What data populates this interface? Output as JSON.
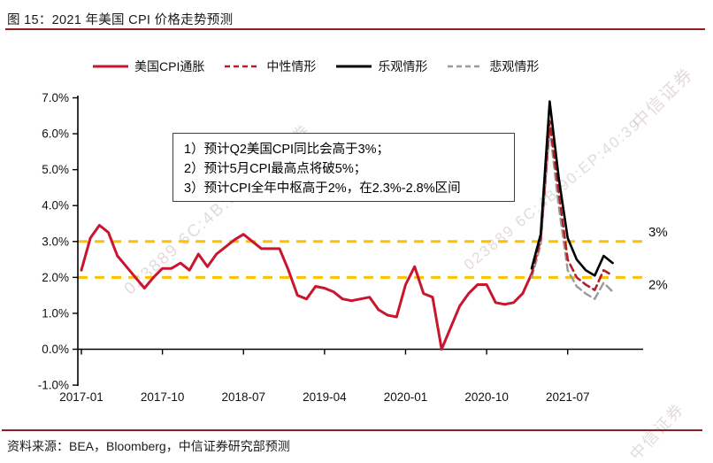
{
  "header": {
    "title": "图 15：2021 年美国 CPI 价格走势预测"
  },
  "footer": {
    "source": "资料来源：BEA，Bloomberg，中信证券研究部预测"
  },
  "annotation": {
    "lines": [
      "1）预计Q2美国CPI同比会高于3%；",
      "2）预计5月CPI最高点将破5%；",
      "3）预计CPI全年中枢高于2%，在2.3%-2.8%区间"
    ]
  },
  "watermarks": {
    "diagonal_left": "023889 6C:4B:90: 中信证券",
    "diagonal_right": "023889 6C:4B:90:EP:40:39",
    "corner_top": "中信证券",
    "corner_bottom": "中信证券"
  },
  "colors": {
    "accent_rule": "#8e1f22",
    "ref_line": "#ffc000",
    "cpi_red": "#c9152e",
    "neutral_red": "#b02025",
    "optimistic_black": "#000000",
    "pessimistic_gray": "#9a9a9a"
  },
  "chart_data": {
    "type": "line",
    "title": "2021 年美国 CPI 价格走势预测",
    "grid": false,
    "legend_position": "top",
    "categories": [
      "2017-01",
      "2017-02",
      "2017-03",
      "2017-04",
      "2017-05",
      "2017-06",
      "2017-07",
      "2017-08",
      "2017-09",
      "2017-10",
      "2017-11",
      "2017-12",
      "2018-01",
      "2018-02",
      "2018-03",
      "2018-04",
      "2018-05",
      "2018-06",
      "2018-07",
      "2018-08",
      "2018-09",
      "2018-10",
      "2018-11",
      "2018-12",
      "2019-01",
      "2019-02",
      "2019-03",
      "2019-04",
      "2019-05",
      "2019-06",
      "2019-07",
      "2019-08",
      "2019-09",
      "2019-10",
      "2019-11",
      "2019-12",
      "2020-01",
      "2020-02",
      "2020-03",
      "2020-04",
      "2020-05",
      "2020-06",
      "2020-07",
      "2020-08",
      "2020-09",
      "2020-10",
      "2020-11",
      "2020-12",
      "2021-01",
      "2021-02",
      "2021-03",
      "2021-04",
      "2021-05",
      "2021-06",
      "2021-07",
      "2021-08",
      "2021-09",
      "2021-10",
      "2021-11",
      "2021-12"
    ],
    "series": [
      {
        "name": "美国CPI通胀",
        "color": "#c9152e",
        "style": "solid",
        "width": 3,
        "start_index": 0,
        "values": [
          2.2,
          3.1,
          3.45,
          3.25,
          2.6,
          2.3,
          2.0,
          1.7,
          2.0,
          2.25,
          2.25,
          2.4,
          2.2,
          2.65,
          2.3,
          2.65,
          2.85,
          3.05,
          3.2,
          3.0,
          2.8,
          2.8,
          2.8,
          2.2,
          1.5,
          1.4,
          1.75,
          1.7,
          1.6,
          1.4,
          1.35,
          1.4,
          1.45,
          1.1,
          0.95,
          0.9,
          1.8,
          2.3,
          1.55,
          1.45,
          0.0,
          0.6,
          1.2,
          1.55,
          1.8,
          1.8,
          1.3,
          1.25,
          1.3,
          1.55,
          2.1
        ]
      },
      {
        "name": "中性情形",
        "color": "#b02025",
        "style": "dashed",
        "width": 2.6,
        "start_index": 50,
        "values": [
          2.1,
          3.05,
          6.35,
          4.4,
          2.5,
          2.0,
          1.8,
          1.65,
          2.2,
          2.05
        ]
      },
      {
        "name": "乐观情形",
        "color": "#000000",
        "style": "solid",
        "width": 2.6,
        "start_index": 50,
        "values": [
          2.25,
          3.2,
          6.9,
          4.8,
          3.1,
          2.5,
          2.2,
          2.05,
          2.6,
          2.4
        ]
      },
      {
        "name": "悲观情形",
        "color": "#9a9a9a",
        "style": "dashed",
        "width": 2.4,
        "start_index": 50,
        "values": [
          2.0,
          2.9,
          6.15,
          4.0,
          2.2,
          1.75,
          1.55,
          1.4,
          1.85,
          1.6
        ]
      }
    ],
    "y_axis": {
      "min": -1,
      "max": 7,
      "unit": "%",
      "tick_labels": [
        "7.0%",
        "6.0%",
        "5.0%",
        "4.0%",
        "3.0%",
        "2.0%",
        "1.0%",
        "0.0%",
        "-1.0%"
      ],
      "tick_values": [
        7,
        6,
        5,
        4,
        3,
        2,
        1,
        0,
        -1
      ]
    },
    "x_axis": {
      "tick_labels": [
        "2017-01",
        "2017-10",
        "2018-07",
        "2019-04",
        "2020-01",
        "2020-10",
        "2021-07"
      ],
      "tick_month_indices": [
        0,
        9,
        18,
        27,
        36,
        45,
        54
      ]
    },
    "ref_lines": [
      {
        "label": "3%",
        "value": 3,
        "color": "#ffc000"
      },
      {
        "label": "2%",
        "value": 2,
        "color": "#ffc000"
      }
    ]
  }
}
